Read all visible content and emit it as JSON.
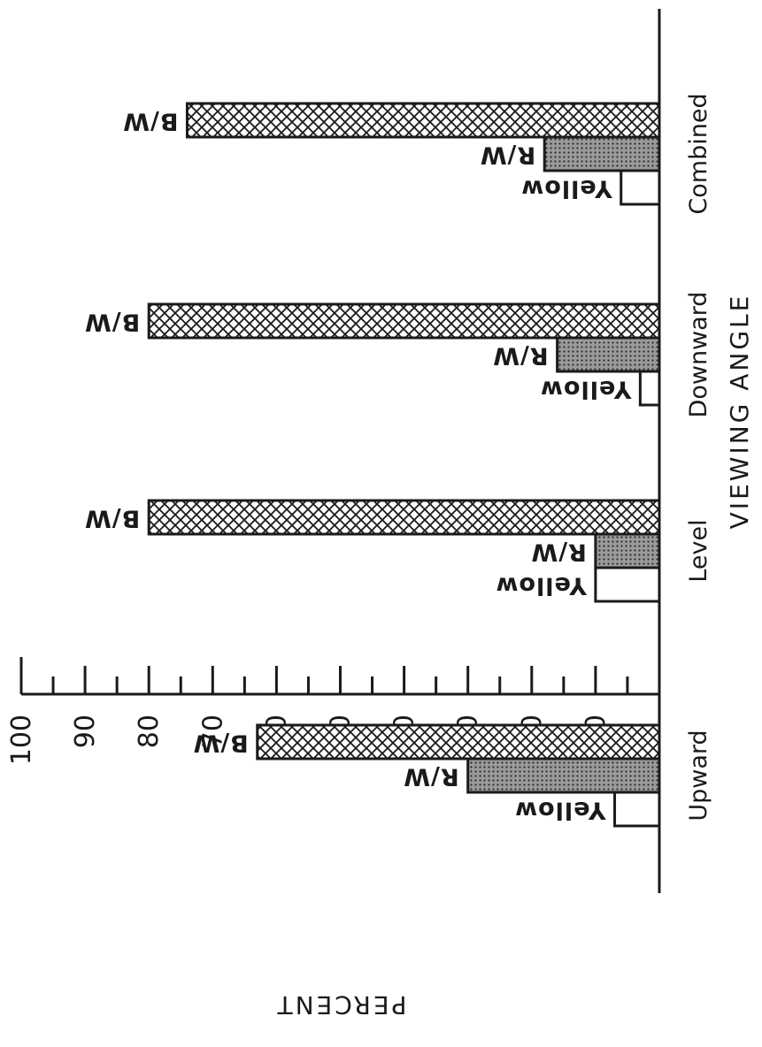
{
  "chart_data": {
    "type": "bar",
    "orientation": "horizontal",
    "title": "",
    "xlabel": "PERCENT",
    "ylabel": "VIEWING ANGLE",
    "xlim": [
      0,
      100
    ],
    "ticks_labeled": [
      10,
      20,
      30,
      40,
      50,
      60,
      70,
      80,
      90,
      100
    ],
    "tick_labels": [
      "10",
      "20",
      "30",
      "40",
      "50",
      "60",
      "70",
      "80",
      "90",
      "100"
    ],
    "categories": [
      "Upward",
      "Level",
      "Downward",
      "Combined"
    ],
    "series": [
      {
        "name": "B/W",
        "values": [
          63,
          80,
          80,
          74
        ],
        "pattern": "crosshatch"
      },
      {
        "name": "R/W",
        "values": [
          30,
          10,
          16,
          18
        ],
        "pattern": "dots"
      },
      {
        "name": "Yellow",
        "values": [
          7,
          10,
          3,
          6
        ],
        "pattern": "none"
      }
    ],
    "grid": false,
    "legend": "none"
  }
}
